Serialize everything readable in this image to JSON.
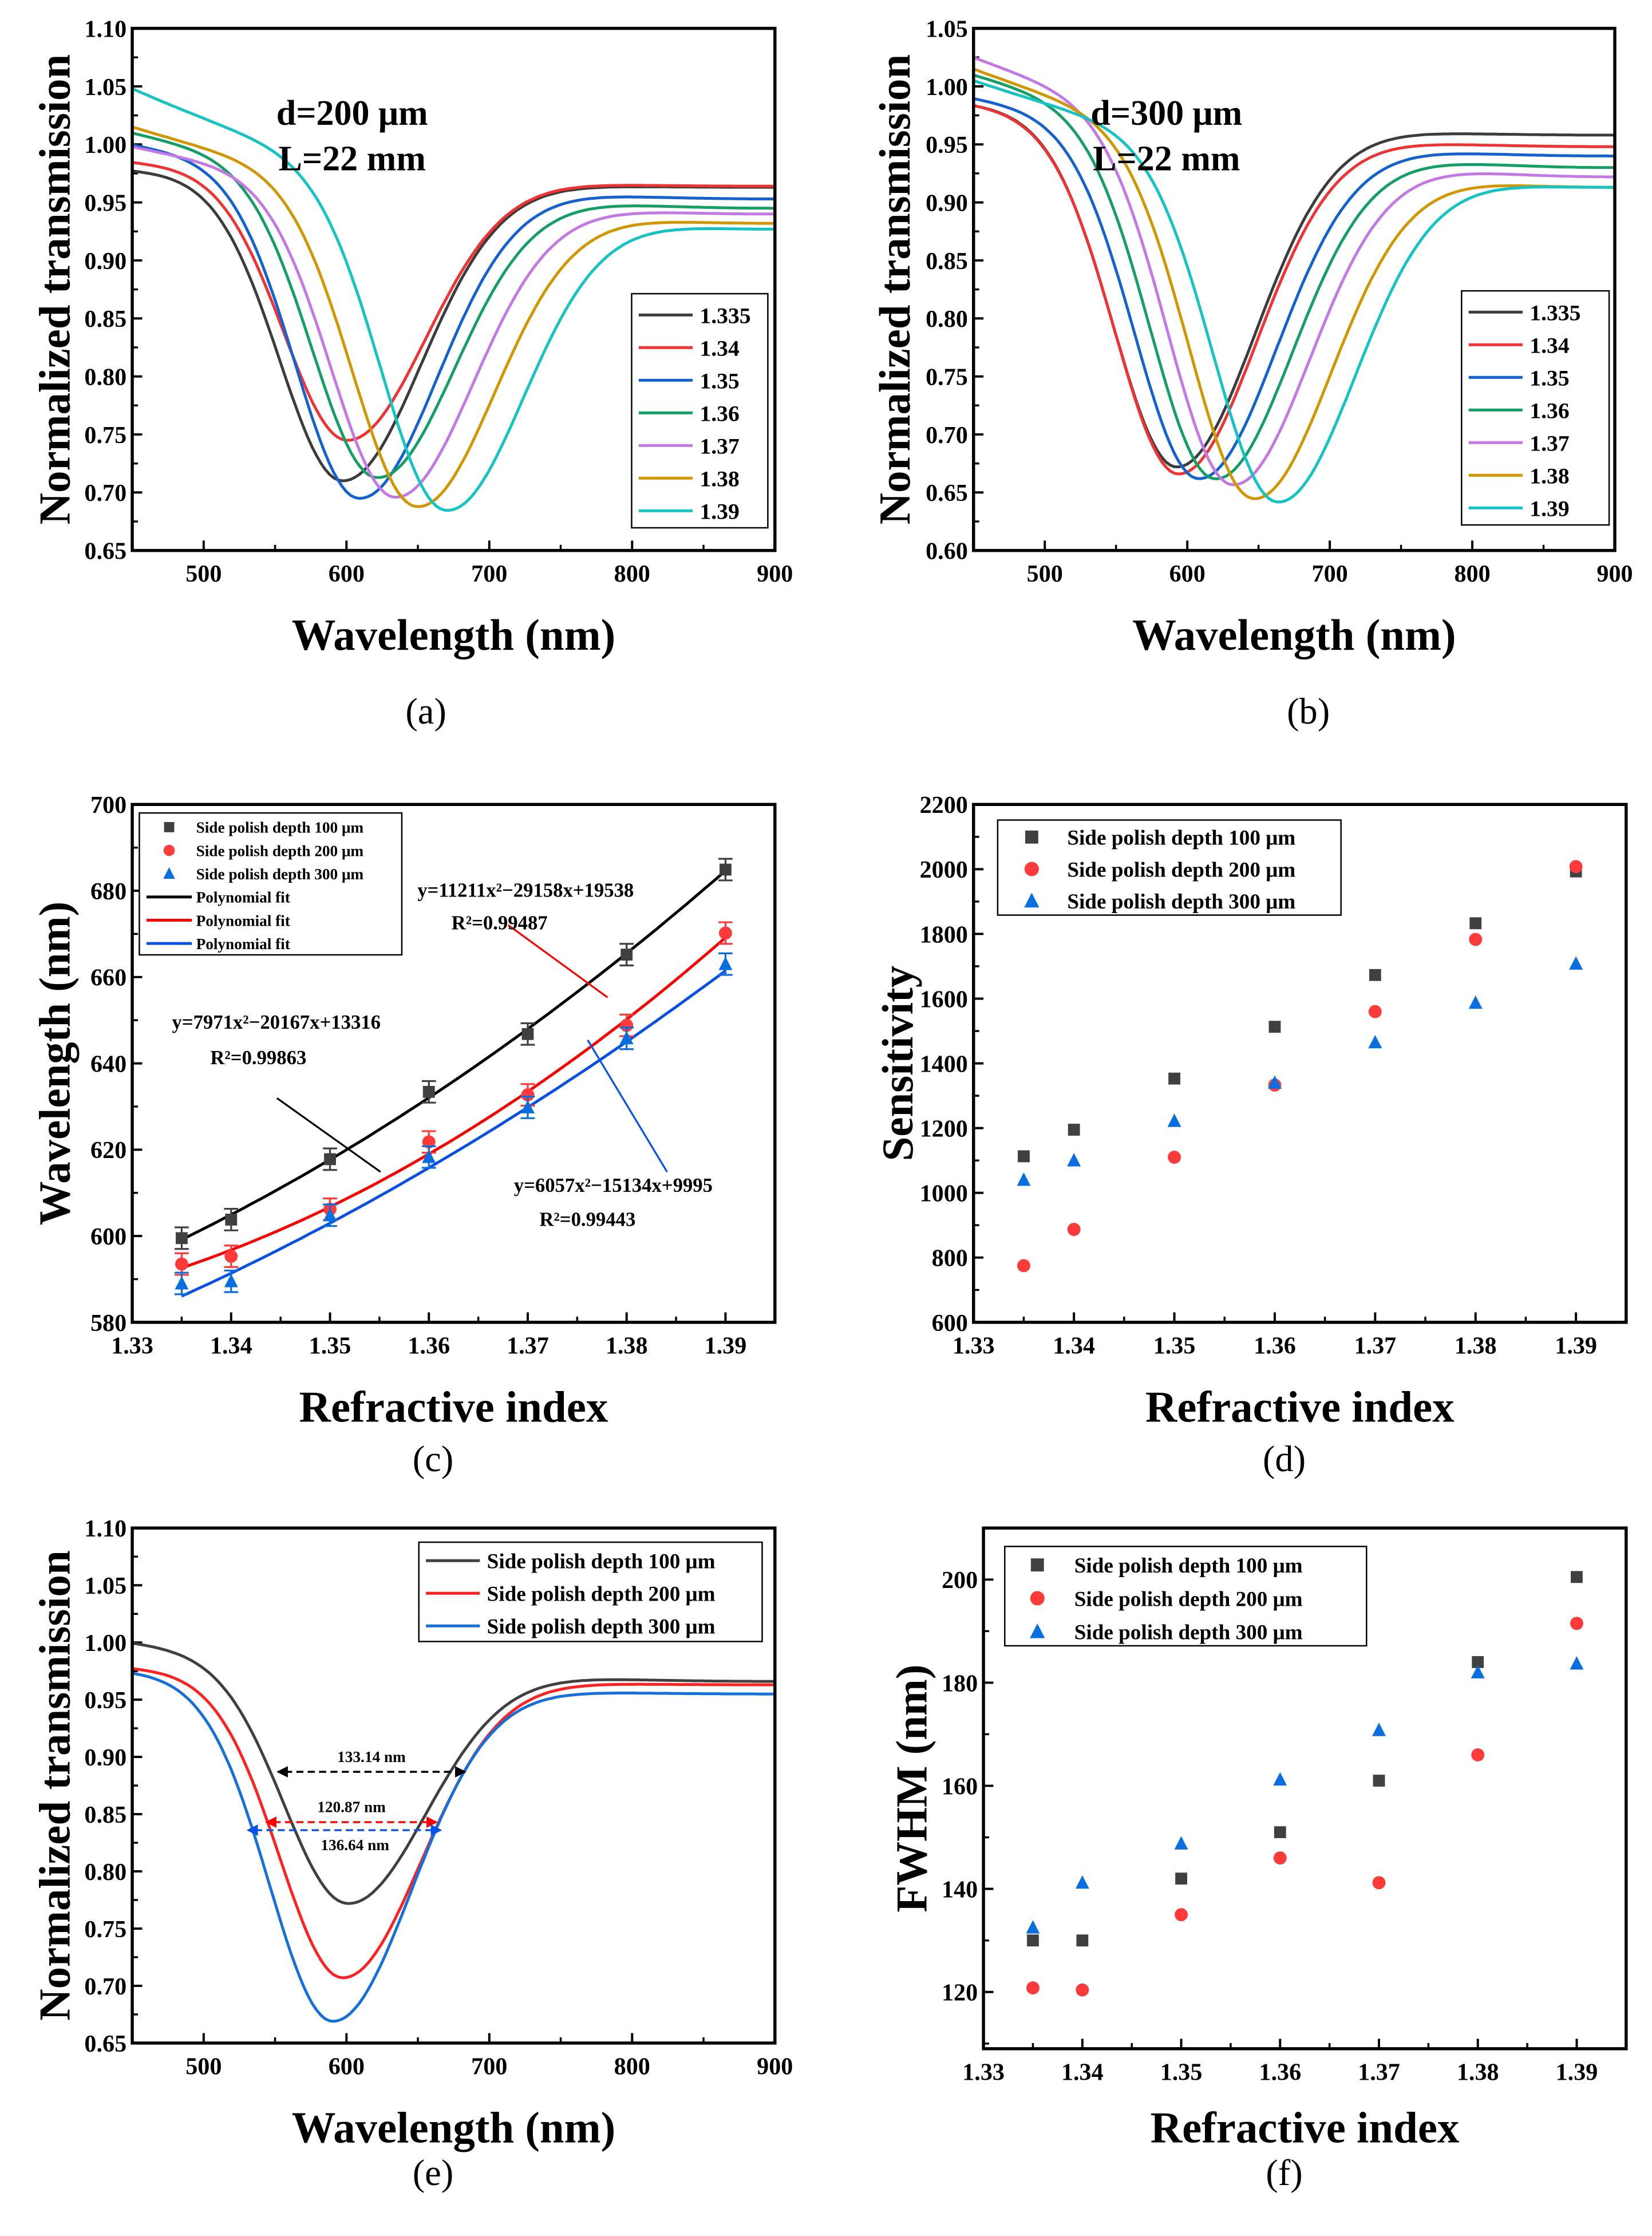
{
  "figure": {
    "panel_labels": [
      "(a)",
      "(b)",
      "(c)",
      "(d)",
      "(e)",
      "(f)"
    ]
  },
  "colors": {
    "n1335": "#3c3c3c",
    "n134": "#f03232",
    "n135": "#1462d2",
    "n136": "#14a064",
    "n137": "#c478e6",
    "n138": "#d29600",
    "n139": "#14c3c3",
    "d100": "#404040",
    "d200": "#ff3a3a",
    "d300": "#0a6ee0",
    "fit_black": "#000000",
    "fit_red": "#ff0000",
    "fit_blue": "#0a50e6"
  },
  "chart_data": [
    {
      "type": "line",
      "panel": "(a)",
      "xlabel": "Wavelength (nm)",
      "ylabel": "Normalized transmission",
      "xlim": [
        450,
        900
      ],
      "ylim": [
        0.65,
        1.1
      ],
      "xticks": [
        "500",
        "600",
        "700",
        "800",
        "900"
      ],
      "yticks": [
        "0.65",
        "0.70",
        "0.75",
        "0.80",
        "0.85",
        "0.90",
        "0.95",
        "1.00",
        "1.05",
        "1.10"
      ],
      "annotations": [
        "d=200 μm",
        "L=22 mm"
      ],
      "legend_position": "right",
      "series": [
        {
          "name": "1.335",
          "color": "#3c3c3c",
          "dip_wavelength": 597,
          "dip_min": 0.71,
          "start": 0.978,
          "end": 0.963
        },
        {
          "name": "1.34",
          "color": "#f03232",
          "dip_wavelength": 600,
          "dip_min": 0.745,
          "start": 0.985,
          "end": 0.964
        },
        {
          "name": "1.35",
          "color": "#1462d2",
          "dip_wavelength": 608,
          "dip_min": 0.695,
          "start": 1.0,
          "end": 0.953
        },
        {
          "name": "1.36",
          "color": "#14a064",
          "dip_wavelength": 620,
          "dip_min": 0.713,
          "start": 1.01,
          "end": 0.945
        },
        {
          "name": "1.37",
          "color": "#c478e6",
          "dip_wavelength": 633,
          "dip_min": 0.696,
          "start": 0.998,
          "end": 0.94
        },
        {
          "name": "1.38",
          "color": "#d29600",
          "dip_wavelength": 648,
          "dip_min": 0.688,
          "start": 1.015,
          "end": 0.932
        },
        {
          "name": "1.39",
          "color": "#14c3c3",
          "dip_wavelength": 668,
          "dip_min": 0.685,
          "start": 1.048,
          "end": 0.927
        }
      ]
    },
    {
      "type": "line",
      "panel": "(b)",
      "xlabel": "Wavelength (nm)",
      "ylabel": "Normalized transmission",
      "xlim": [
        450,
        900
      ],
      "ylim": [
        0.6,
        1.05
      ],
      "xticks": [
        "500",
        "600",
        "700",
        "800",
        "900"
      ],
      "yticks": [
        "0.60",
        "0.65",
        "0.70",
        "0.75",
        "0.80",
        "0.85",
        "0.90",
        "0.95",
        "1.00",
        "1.05"
      ],
      "annotations": [
        "d=300 μm",
        "L=22 mm"
      ],
      "legend_position": "right",
      "series": [
        {
          "name": "1.335",
          "color": "#3c3c3c",
          "dip_wavelength": 592,
          "dip_min": 0.672,
          "start": 0.985,
          "end": 0.958
        },
        {
          "name": "1.34",
          "color": "#f03232",
          "dip_wavelength": 593,
          "dip_min": 0.666,
          "start": 0.985,
          "end": 0.948
        },
        {
          "name": "1.35",
          "color": "#1462d2",
          "dip_wavelength": 607,
          "dip_min": 0.662,
          "start": 0.99,
          "end": 0.94
        },
        {
          "name": "1.36",
          "color": "#14a064",
          "dip_wavelength": 618,
          "dip_min": 0.662,
          "start": 1.01,
          "end": 0.93
        },
        {
          "name": "1.37",
          "color": "#c478e6",
          "dip_wavelength": 630,
          "dip_min": 0.657,
          "start": 1.025,
          "end": 0.922
        },
        {
          "name": "1.38",
          "color": "#d29600",
          "dip_wavelength": 645,
          "dip_min": 0.645,
          "start": 1.015,
          "end": 0.913
        },
        {
          "name": "1.39",
          "color": "#14c3c3",
          "dip_wavelength": 662,
          "dip_min": 0.642,
          "start": 1.005,
          "end": 0.913
        }
      ]
    },
    {
      "type": "scatter",
      "panel": "(c)",
      "xlabel": "Refractive index",
      "ylabel": "Wavelength (nm)",
      "xlim": [
        1.33,
        1.395
      ],
      "ylim": [
        580,
        700
      ],
      "xticks": [
        "1.33",
        "1.34",
        "1.35",
        "1.36",
        "1.37",
        "1.38",
        "1.39"
      ],
      "yticks": [
        "580",
        "600",
        "620",
        "640",
        "660",
        "680",
        "700"
      ],
      "x": [
        1.335,
        1.34,
        1.35,
        1.36,
        1.37,
        1.38,
        1.39
      ],
      "legend_position": "top-left",
      "series": [
        {
          "name": "Side polish depth 100 μm",
          "marker": "square",
          "color": "#404040",
          "values": [
            599.5,
            603.8,
            617.8,
            633.4,
            646.8,
            665.2,
            684.9
          ],
          "error": 2.5
        },
        {
          "name": "Side polish depth 200 μm",
          "marker": "circle",
          "color": "#ff3a3a",
          "values": [
            593.5,
            595.3,
            606.2,
            621.8,
            632.7,
            648.8,
            670.2
          ],
          "error": 2.5
        },
        {
          "name": "Side polish depth 300 μm",
          "marker": "triangle",
          "color": "#0a6ee0",
          "values": [
            589.0,
            589.5,
            604.8,
            618.3,
            629.8,
            645.8,
            663.0
          ],
          "error": 2.5
        }
      ],
      "fits": [
        {
          "name": "Polynomial fit",
          "color": "#000000",
          "coeffs": [
            7971,
            -20167,
            13316
          ],
          "equation": "y=7971x²−20167x+13316",
          "r2": "R²=0.99863"
        },
        {
          "name": "Polynomial fit",
          "color": "#ff0000",
          "coeffs": [
            11211,
            -29158,
            19538
          ],
          "equation": "y=11211x²−29158x+19538",
          "r2": "R²=0.99487"
        },
        {
          "name": "Polynomial fit",
          "color": "#0a50e6",
          "coeffs": [
            6057,
            -15134,
            9995
          ],
          "equation": "y=6057x²−15134x+9995",
          "r2": "R²=0.99443"
        }
      ]
    },
    {
      "type": "scatter",
      "panel": "(d)",
      "xlabel": "Refractive index",
      "ylabel": "Sensitivity",
      "xlim": [
        1.33,
        1.395
      ],
      "ylim": [
        600,
        2200
      ],
      "xticks": [
        "1.33",
        "1.34",
        "1.35",
        "1.36",
        "1.37",
        "1.38",
        "1.39"
      ],
      "yticks": [
        "600",
        "800",
        "1000",
        "1200",
        "1400",
        "1600",
        "1800",
        "2000",
        "2200"
      ],
      "x": [
        1.335,
        1.34,
        1.35,
        1.36,
        1.37,
        1.38,
        1.39
      ],
      "legend_position": "top-left",
      "series": [
        {
          "name": "Side polish depth 100 μm",
          "marker": "square",
          "color": "#404040",
          "values": [
            1113,
            1195,
            1353,
            1513,
            1673,
            1833,
            1993
          ]
        },
        {
          "name": "Side polish depth 200 μm",
          "marker": "circle",
          "color": "#ff3a3a",
          "values": [
            775,
            887,
            1110,
            1333,
            1560,
            1783,
            2008
          ]
        },
        {
          "name": "Side polish depth 300 μm",
          "marker": "triangle",
          "color": "#0a6ee0",
          "values": [
            1040,
            1100,
            1222,
            1340,
            1465,
            1587,
            1708
          ]
        }
      ]
    },
    {
      "type": "line",
      "panel": "(e)",
      "xlabel": "Wavelength (nm)",
      "ylabel": "Normalized transmission",
      "xlim": [
        450,
        900
      ],
      "ylim": [
        0.65,
        1.1
      ],
      "xticks": [
        "500",
        "600",
        "700",
        "800",
        "900"
      ],
      "yticks": [
        "0.65",
        "0.70",
        "0.75",
        "0.80",
        "0.85",
        "0.90",
        "0.95",
        "1.00",
        "1.05",
        "1.10"
      ],
      "legend_position": "top-right",
      "series": [
        {
          "name": "Side polish depth 100 μm",
          "color": "#404040",
          "dip_wavelength": 600,
          "dip_min": 0.772,
          "start": 1.0,
          "end": 0.966
        },
        {
          "name": "Side polish depth 200 μm",
          "color": "#ff2020",
          "dip_wavelength": 597,
          "dip_min": 0.707,
          "start": 0.978,
          "end": 0.963
        },
        {
          "name": "Side polish depth 300 μm",
          "color": "#1470dc",
          "dip_wavelength": 590,
          "dip_min": 0.669,
          "start": 0.975,
          "end": 0.955
        }
      ],
      "fwhm_annotations": [
        {
          "label": "133.14 nm",
          "color": "#000000",
          "level": 0.887,
          "from": 551,
          "to": 684
        },
        {
          "label": "120.87 nm",
          "color": "#ff0000",
          "level": 0.843,
          "from": 543,
          "to": 664
        },
        {
          "label": "136.64 nm",
          "color": "#0a50e6",
          "level": 0.836,
          "from": 530,
          "to": 667
        }
      ]
    },
    {
      "type": "scatter",
      "panel": "(f)",
      "xlabel": "Refractive index",
      "ylabel": "FWHM (nm)",
      "xlim": [
        1.33,
        1.395
      ],
      "ylim": [
        109,
        210
      ],
      "xticks": [
        "1.33",
        "1.34",
        "1.35",
        "1.36",
        "1.37",
        "1.38",
        "1.39"
      ],
      "yticks": [
        "120",
        "140",
        "160",
        "180",
        "200"
      ],
      "x": [
        1.335,
        1.34,
        1.35,
        1.36,
        1.37,
        1.38,
        1.39
      ],
      "legend_position": "top-left",
      "series": [
        {
          "name": "Side polish depth 100 μm",
          "marker": "square",
          "color": "#404040",
          "values": [
            130,
            130,
            142,
            151,
            161,
            184,
            200.5
          ]
        },
        {
          "name": "Side polish depth 200 μm",
          "marker": "circle",
          "color": "#ff3a3a",
          "values": [
            120.8,
            120.4,
            135,
            146,
            141.2,
            166,
            191.5
          ]
        },
        {
          "name": "Side polish depth 300 μm",
          "marker": "triangle",
          "color": "#0a6ee0",
          "values": [
            132.5,
            141.2,
            148.8,
            161.2,
            170.8,
            182,
            183.7
          ]
        }
      ]
    }
  ]
}
